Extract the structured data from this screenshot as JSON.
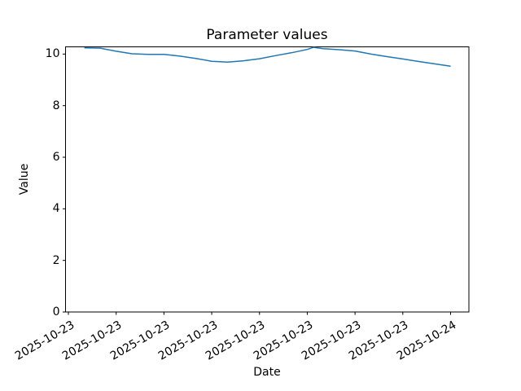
{
  "figure": {
    "background": "#ffffff"
  },
  "chart_data": {
    "type": "line",
    "title": "Parameter values",
    "xlabel": "Date",
    "ylabel": "Value",
    "x_unit": "hours since 2025-10-23 00:00",
    "xlim": [
      -0.18,
      25.15
    ],
    "ylim": [
      0,
      10.28
    ],
    "grid": false,
    "legend_position": "none",
    "line_color": "#1f77b4",
    "line_width": 1.5,
    "axis_color": "#000000",
    "x_tick_rotation_deg": 30,
    "x_ticks": [
      {
        "h": 0,
        "label": "2025-10-23"
      },
      {
        "h": 3,
        "label": "2025-10-23"
      },
      {
        "h": 6,
        "label": "2025-10-23"
      },
      {
        "h": 9,
        "label": "2025-10-23"
      },
      {
        "h": 12,
        "label": "2025-10-23"
      },
      {
        "h": 15,
        "label": "2025-10-23"
      },
      {
        "h": 18,
        "label": "2025-10-23"
      },
      {
        "h": 21,
        "label": "2025-10-23"
      },
      {
        "h": 24,
        "label": "2025-10-24"
      }
    ],
    "y_ticks": [
      {
        "v": 0,
        "label": "0"
      },
      {
        "v": 2,
        "label": "2"
      },
      {
        "v": 4,
        "label": "4"
      },
      {
        "v": 6,
        "label": "6"
      },
      {
        "v": 8,
        "label": "8"
      },
      {
        "v": 10,
        "label": "10"
      }
    ],
    "series": [
      {
        "name": "Parameter",
        "color": "#1f77b4",
        "points": [
          [
            1.0,
            10.24
          ],
          [
            2.0,
            10.23
          ],
          [
            3.0,
            10.11
          ],
          [
            4.0,
            10.01
          ],
          [
            5.0,
            9.99
          ],
          [
            6.0,
            9.99
          ],
          [
            7.0,
            9.92
          ],
          [
            8.0,
            9.83
          ],
          [
            9.0,
            9.72
          ],
          [
            10.0,
            9.69
          ],
          [
            11.0,
            9.74
          ],
          [
            12.0,
            9.82
          ],
          [
            13.0,
            9.94
          ],
          [
            14.0,
            10.05
          ],
          [
            15.0,
            10.18
          ],
          [
            15.4,
            10.26
          ],
          [
            16.0,
            10.21
          ],
          [
            17.0,
            10.17
          ],
          [
            18.0,
            10.12
          ],
          [
            19.0,
            10.0
          ],
          [
            20.0,
            9.9
          ],
          [
            21.0,
            9.81
          ],
          [
            22.0,
            9.71
          ],
          [
            23.0,
            9.62
          ],
          [
            24.0,
            9.53
          ]
        ]
      }
    ]
  }
}
